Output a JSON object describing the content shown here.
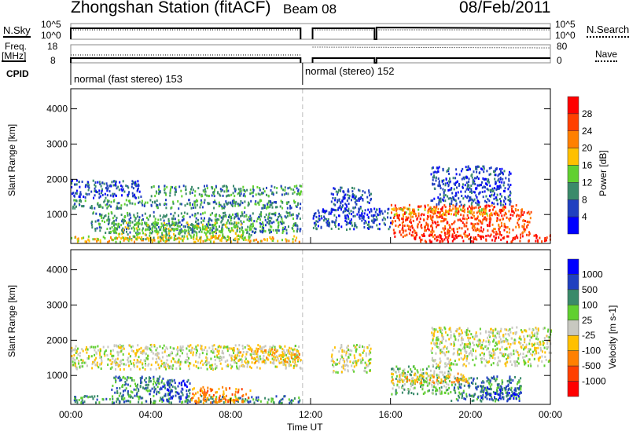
{
  "header": {
    "station": "Zhongshan Station (fitACF)",
    "beam": "Beam 08",
    "date": "08/Feb/2011"
  },
  "nsky_panel": {
    "left_label": "N.Sky",
    "right_label": "N.Search",
    "ticks_left": [
      "10^5",
      "10^0"
    ],
    "ticks_right": [
      "10^5",
      "10^0"
    ]
  },
  "freq_panel": {
    "left_label_1": "Freq.",
    "left_label_2": "[MHz]",
    "right_label": "Nave",
    "ticks_left": [
      "18",
      "8"
    ],
    "ticks_right": [
      "80",
      "0"
    ]
  },
  "cpid": {
    "label": "CPID",
    "segments": [
      {
        "name": "normal (fast stereo) 153",
        "start_hour": 0
      },
      {
        "name": "normal (stereo) 152",
        "start_hour": 11.6
      }
    ]
  },
  "chart_data": [
    {
      "type": "heatmap",
      "title": "Power",
      "ylabel": "Slant Range [km]",
      "xlabel": "Time UT",
      "xlim": [
        0,
        24
      ],
      "ylim": [
        180,
        4570
      ],
      "yticks": [
        "1000",
        "2000",
        "3000",
        "4000"
      ],
      "xticks": [
        "00:00",
        "04:00",
        "08:00",
        "12:00",
        "16:00",
        "20:00",
        "00:00"
      ],
      "colorbar": {
        "label": "Power [dB]",
        "ticks": [
          "28",
          "24",
          "20",
          "16",
          "12",
          "8",
          "4"
        ],
        "colors": [
          "#0000ff",
          "#2040c0",
          "#3a8a6a",
          "#60d030",
          "#ffc000",
          "#ff8000",
          "#ff4000",
          "#ff0000"
        ]
      },
      "echo_regions": [
        [
          0,
          3.5,
          1500,
          2000,
          1
        ],
        [
          0,
          11.5,
          1200,
          1450,
          2
        ],
        [
          1,
          11.5,
          500,
          1100,
          2
        ],
        [
          0,
          11.5,
          250,
          420,
          4
        ],
        [
          2,
          9,
          300,
          800,
          3
        ],
        [
          4,
          11.5,
          1550,
          1850,
          2
        ],
        [
          13,
          15,
          1100,
          1800,
          1
        ],
        [
          16,
          23,
          400,
          1300,
          6
        ],
        [
          17,
          24,
          250,
          450,
          7
        ],
        [
          18,
          22,
          1300,
          2400,
          1
        ],
        [
          12,
          16,
          600,
          1200,
          1
        ],
        [
          16,
          21,
          1000,
          1200,
          4
        ]
      ]
    },
    {
      "type": "heatmap",
      "title": "Velocity",
      "ylabel": "Slant Range [km]",
      "xlabel": "Time UT",
      "xlim": [
        0,
        24
      ],
      "ylim": [
        180,
        4570
      ],
      "yticks": [
        "1000",
        "2000",
        "3000",
        "4000"
      ],
      "xticks": [
        "00:00",
        "04:00",
        "08:00",
        "12:00",
        "16:00",
        "20:00",
        "00:00"
      ],
      "colorbar": {
        "label": "Velocity [m s-1]",
        "ticks": [
          "1000",
          "500",
          "100",
          "25",
          "-25",
          "-100",
          "-500",
          "-1000"
        ],
        "colors": [
          "#ff0000",
          "#ff4000",
          "#ff8000",
          "#ffc000",
          "#c8c8c0",
          "#60d030",
          "#3a8a6a",
          "#2040c0",
          "#0000ff"
        ]
      },
      "echo_regions": [
        [
          0,
          11.5,
          1200,
          1900,
          4
        ],
        [
          0,
          11.5,
          250,
          450,
          6
        ],
        [
          2,
          5,
          400,
          1000,
          6
        ],
        [
          4.5,
          6,
          300,
          900,
          7
        ],
        [
          6,
          9,
          250,
          700,
          2
        ],
        [
          8,
          11.5,
          1400,
          1800,
          3
        ],
        [
          13,
          15,
          1100,
          1900,
          4
        ],
        [
          16,
          19,
          500,
          1300,
          5
        ],
        [
          19,
          22.5,
          300,
          1000,
          6
        ],
        [
          20.5,
          22.5,
          300,
          700,
          7
        ],
        [
          18,
          24,
          1300,
          2400,
          4
        ],
        [
          16,
          20,
          800,
          1100,
          3
        ]
      ]
    }
  ]
}
